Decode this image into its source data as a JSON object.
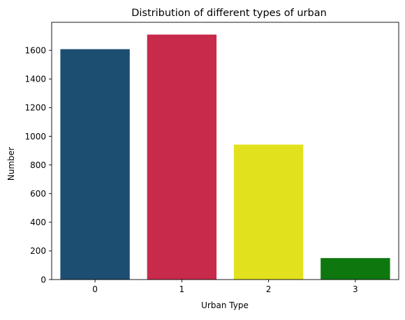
{
  "chart_data": {
    "type": "bar",
    "title": "Distribution of different types of urban",
    "xlabel": "Urban Type",
    "ylabel": "Number",
    "categories": [
      "0",
      "1",
      "2",
      "3"
    ],
    "values": [
      1608,
      1710,
      942,
      150
    ],
    "colors": [
      "#1c4e72",
      "#c72a4b",
      "#e1e11d",
      "#0e780e"
    ],
    "ylim": [
      0,
      1795.5
    ],
    "yticks": [
      0,
      200,
      400,
      600,
      800,
      1000,
      1200,
      1400,
      1600
    ],
    "grid": false,
    "legend": "none"
  }
}
